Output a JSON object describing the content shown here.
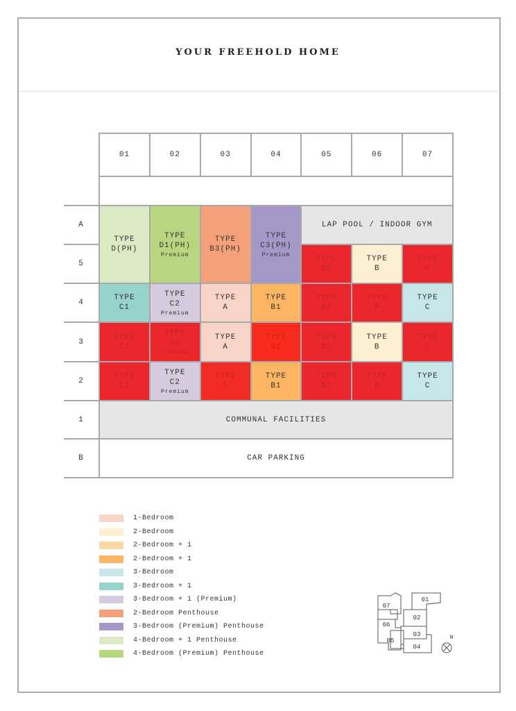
{
  "header": {
    "title": "YOUR FREEHOLD HOME"
  },
  "table": {
    "columns": [
      "01",
      "02",
      "03",
      "04",
      "05",
      "06",
      "07"
    ],
    "rows": [
      {
        "label": "A",
        "cells": [
          {
            "lines": [
              "TYPE",
              "D(PH)"
            ],
            "color": "#dbe9c4"
          },
          {
            "lines": [
              "TYPE",
              "D1(PH)"
            ],
            "note": "Premium",
            "color": "#b8d67f"
          },
          {
            "lines": [
              "TYPE",
              "B3(PH)"
            ],
            "color": "#f4a07a"
          },
          {
            "lines": [
              "TYPE",
              "C3(PH)"
            ],
            "note": "Premium",
            "color": "#a597c8"
          },
          {
            "lines": [
              "LAP POOL / INDOOR GYM"
            ],
            "color": "#e6e6e6"
          }
        ]
      },
      {
        "label": "5",
        "cells": [
          {
            "lines": [
              "TYPE",
              "B2"
            ],
            "color": "#e9272d",
            "text_color": "#c4222a"
          },
          {
            "lines": [
              "TYPE",
              "B"
            ],
            "color": "#fdf0d2"
          },
          {
            "lines": [
              "TYPE",
              "C"
            ],
            "color": "#e9272d",
            "text_color": "#c4222a"
          }
        ]
      },
      {
        "label": "4",
        "cells": [
          {
            "lines": [
              "TYPE",
              "C1"
            ],
            "color": "#96d3cc"
          },
          {
            "lines": [
              "TYPE",
              "C2"
            ],
            "note": "Premium",
            "color": "#d6cadf"
          },
          {
            "lines": [
              "TYPE",
              "A"
            ],
            "color": "#f8d4c8"
          },
          {
            "lines": [
              "TYPE",
              "B1"
            ],
            "color": "#fbb563"
          },
          {
            "lines": [
              "TYPE",
              "B2"
            ],
            "color": "#e9272d",
            "text_color": "#c4222a"
          },
          {
            "lines": [
              "TYPE",
              "B"
            ],
            "color": "#e9272d",
            "text_color": "#c4222a"
          },
          {
            "lines": [
              "TYPE",
              "C"
            ],
            "color": "#c6e6ea"
          }
        ]
      },
      {
        "label": "3",
        "cells": [
          {
            "lines": [
              "TYPE",
              "C1"
            ],
            "color": "#e9272d",
            "text_color": "#c4222a"
          },
          {
            "lines": [
              "TYPE",
              "C2"
            ],
            "note": "Premium",
            "color": "#e9272d",
            "text_color": "#c4222a"
          },
          {
            "lines": [
              "TYPE",
              "A"
            ],
            "color": "#f8d4c8"
          },
          {
            "lines": [
              "TYPE",
              "B1"
            ],
            "color": "#fb2a1e",
            "text_color": "#cc2219"
          },
          {
            "lines": [
              "TYPE",
              "B2"
            ],
            "color": "#e9272d",
            "text_color": "#c4222a"
          },
          {
            "lines": [
              "TYPE",
              "B"
            ],
            "color": "#fdf0d2"
          },
          {
            "lines": [
              "TYPE",
              "C"
            ],
            "color": "#e9272d",
            "text_color": "#c4222a"
          }
        ]
      },
      {
        "label": "2",
        "cells": [
          {
            "lines": [
              "TYPE",
              "C1"
            ],
            "color": "#e9272d",
            "text_color": "#c4222a"
          },
          {
            "lines": [
              "TYPE",
              "C2"
            ],
            "note": "Premium",
            "color": "#d6cadf"
          },
          {
            "lines": [
              "TYPE",
              "A"
            ],
            "color": "#f12c24",
            "text_color": "#c8241e"
          },
          {
            "lines": [
              "TYPE",
              "B1"
            ],
            "color": "#fbb563"
          },
          {
            "lines": [
              "TYPE",
              "B2"
            ],
            "color": "#e9272d",
            "text_color": "#c4222a"
          },
          {
            "lines": [
              "TYPE",
              "B"
            ],
            "color": "#e9272d",
            "text_color": "#c4222a"
          },
          {
            "lines": [
              "TYPE",
              "C"
            ],
            "color": "#c6e6ea"
          }
        ]
      },
      {
        "label": "1",
        "cells": [
          {
            "lines": [
              "COMMUNAL FACILITIES"
            ],
            "color": "#e6e6e6"
          }
        ]
      },
      {
        "label": "B",
        "cells": [
          {
            "lines": [
              "CAR PARKING"
            ],
            "color": "#ffffff"
          }
        ]
      }
    ]
  },
  "legend": [
    {
      "label": "1-Bedroom",
      "color": "#f8d4c8"
    },
    {
      "label": "2-Bedroom",
      "color": "#fdf0d2"
    },
    {
      "label": "2-Bedroom + 1",
      "color": "#fbd5a5"
    },
    {
      "label": "2-Bedroom + 1",
      "color": "#fbb563"
    },
    {
      "label": "3-Bedroom",
      "color": "#c6e6ea"
    },
    {
      "label": "3-Bedroom + 1",
      "color": "#96d3cc"
    },
    {
      "label": "3-Bedroom + 1 (Premium)",
      "color": "#d6cadf"
    },
    {
      "label": "2-Bedroom Penthouse",
      "color": "#f4a07a"
    },
    {
      "label": "3-Bedroom (Premium) Penthouse",
      "color": "#a597c8"
    },
    {
      "label": "4-Bedroom + 1 Penthouse",
      "color": "#dbe9c4"
    },
    {
      "label": "4-Bedroom (Premium) Penthouse",
      "color": "#b8d67f"
    }
  ],
  "keyplan": {
    "units": [
      "01",
      "02",
      "03",
      "04",
      "05",
      "06",
      "07"
    ],
    "north": "N"
  }
}
